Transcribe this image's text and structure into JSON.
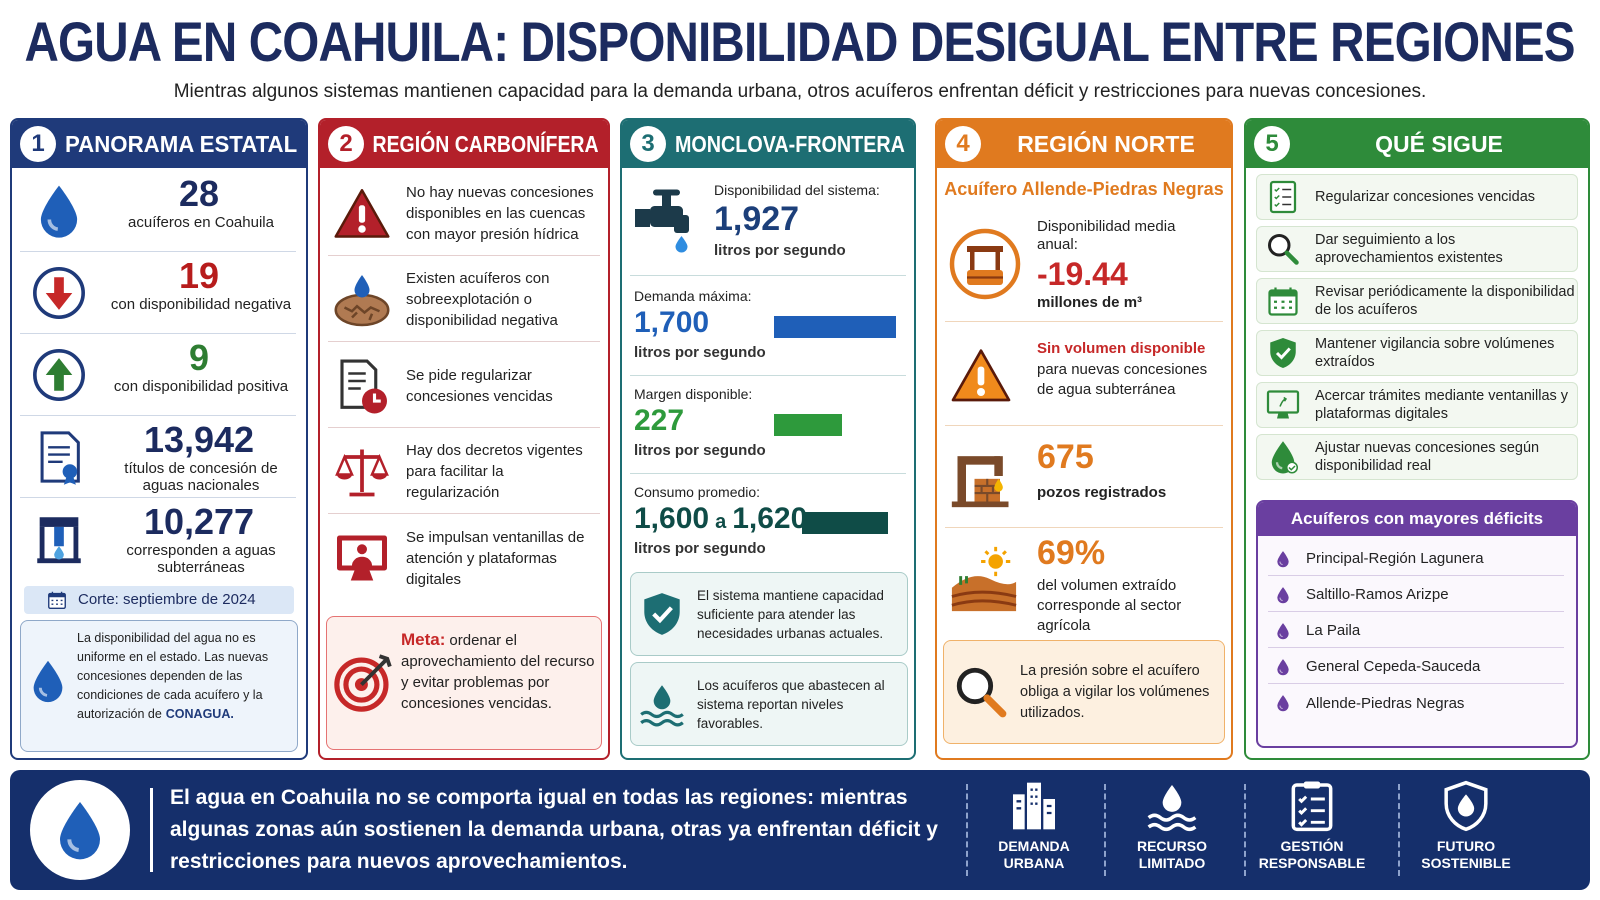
{
  "header": {
    "title": "AGUA EN COAHUILA: DISPONIBILIDAD DESIGUAL ENTRE REGIONES",
    "subtitle": "Mientras algunos sistemas mantienen capacidad para la demanda urbana, otros acuíferos enfrentan déficit y restricciones para nuevas concesiones."
  },
  "panels": [
    {
      "number": "1",
      "title": "PANORAMA ESTATAL",
      "stats": [
        {
          "value": "28",
          "label": "acuíferos en Coahuila"
        },
        {
          "value": "19",
          "label": "con disponibilidad negativa"
        },
        {
          "value": "9",
          "label": "con disponibilidad positiva"
        },
        {
          "value": "13,942",
          "label": "títulos de concesión de aguas nacionales"
        },
        {
          "value": "10,277",
          "label": "corresponden a aguas subterráneas"
        }
      ],
      "cutoff": "Corte: septiembre de 2024",
      "note": "La disponibilidad del agua no es uniforme en el estado. Las nuevas concesiones dependen de las condiciones de cada acuífero y la autorización de",
      "note_emphasis": "CONAGUA."
    },
    {
      "number": "2",
      "title": "REGIÓN CARBONÍFERA",
      "items": [
        "No hay nuevas concesiones disponibles en las cuencas con mayor presión hídrica",
        "Existen acuíferos con sobreexplotación o disponibilidad negativa",
        "Se pide regularizar concesiones vencidas",
        "Hay dos decretos vigentes para facilitar la regularización",
        "Se impulsan ventanillas de atención y plataformas digitales"
      ],
      "goal_label": "Meta:",
      "goal_text": "ordenar el aprovechamiento del recurso y evitar problemas por concesiones vencidas."
    },
    {
      "number": "3",
      "title": "MONCLOVA-FRONTERA",
      "metrics": [
        {
          "label": "Disponibilidad del sistema:",
          "value": "1,927",
          "unit": "litros por segundo"
        },
        {
          "label": "Demanda máxima:",
          "value": "1,700",
          "unit": "litros por segundo"
        },
        {
          "label": "Margen disponible:",
          "value": "227",
          "unit": "litros por segundo"
        },
        {
          "label": "Consumo promedio:",
          "value": "1,600",
          "connector": "a",
          "value_end": "1,620",
          "unit": "litros por segundo"
        }
      ],
      "notes": [
        "El sistema mantiene capacidad suficiente para atender las necesidades urbanas actuales.",
        "Los acuíferos que abastecen al sistema reportan niveles favorables."
      ]
    },
    {
      "number": "4",
      "title": "REGIÓN NORTE",
      "subtitle": "Acuífero Allende-Piedras Negras",
      "availability": {
        "label": "Disponibilidad media anual:",
        "value": "-19.44",
        "unit": "millones de m³"
      },
      "alert": {
        "title": "Sin volumen disponible",
        "text": "para nuevas concesiones de agua subterránea"
      },
      "wells": {
        "value": "675",
        "label": "pozos registrados"
      },
      "agriculture": {
        "value": "69%",
        "label": "del volumen extraído corresponde al sector agrícola"
      },
      "note": "La presión sobre el acuífero obliga a vigilar los volúmenes utilizados."
    },
    {
      "number": "5",
      "title": "QUÉ SIGUE",
      "actions": [
        "Regularizar concesiones vencidas",
        "Dar seguimiento a los aprovechamientos existentes",
        "Revisar periódicamente la disponibilidad de los acuíferos",
        "Mantener vigilancia sobre volúmenes extraídos",
        "Acercar trámites mediante ventanillas y plataformas digitales",
        "Ajustar nuevas concesiones según disponibilidad real"
      ],
      "deficits_title": "Acuíferos con mayores déficits",
      "deficits": [
        "Principal-Región Lagunera",
        "Saltillo-Ramos Arizpe",
        "La Paila",
        "General Cepeda-Sauceda",
        "Allende-Piedras Negras"
      ]
    }
  ],
  "footer": {
    "text": "El agua en Coahuila no se comporta igual en todas las regiones: mientras algunas zonas aún sostienen la demanda urbana, otras ya enfrentan déficit y restricciones para nuevos aprovechamientos.",
    "pillars": [
      "DEMANDA URBANA",
      "RECURSO LIMITADO",
      "GESTIÓN RESPONSABLE",
      "FUTURO SOSTENIBLE"
    ]
  }
}
